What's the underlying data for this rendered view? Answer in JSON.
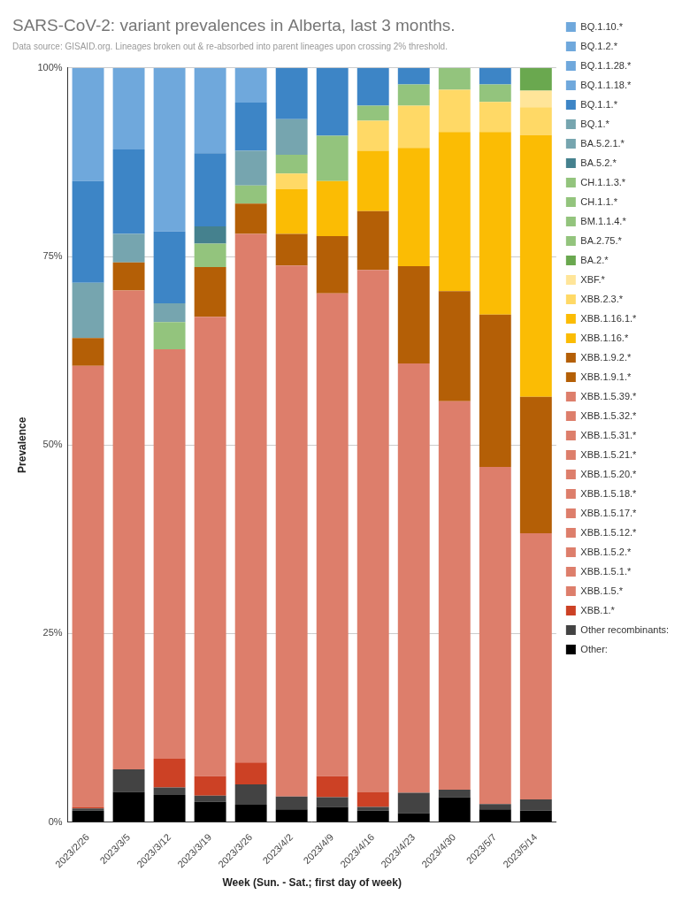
{
  "chart_data": {
    "type": "bar",
    "title": "SARS-CoV-2: variant prevalences in Alberta, last 3 months.",
    "subtitle": "Data source: GISAID.org. Lineages broken out & re-absorbed into parent lineages upon crossing 2% threshold.",
    "x_label": "Week (Sun. - Sat.; first day of week)",
    "y_label": "Prevalence",
    "categories": [
      "2023/2/26",
      "2023/3/5",
      "2023/3/12",
      "2023/3/19",
      "2023/3/26",
      "2023/4/2",
      "2023/4/9",
      "2023/4/16",
      "2023/4/23",
      "2023/4/30",
      "2023/5/7",
      "2023/5/14"
    ],
    "stacked": true,
    "grid": true,
    "legend": "right",
    "ylim": [
      0,
      100
    ],
    "yticks": [
      {
        "value": 0,
        "label": "0%"
      },
      {
        "value": 25,
        "label": "25%"
      },
      {
        "value": 50,
        "label": "50%"
      },
      {
        "value": 75,
        "label": "75%"
      },
      {
        "value": 100,
        "label": "100%"
      }
    ],
    "series": [
      {
        "name": "BQ.1.10.*",
        "color": "#6fa8dc",
        "values": [
          15,
          10.8,
          21.7,
          11.3,
          4.6,
          0,
          0,
          0,
          0,
          0,
          0,
          0
        ]
      },
      {
        "name": "BQ.1.2.*",
        "color": "#6fa8dc",
        "values": [
          0,
          0,
          0,
          0,
          0,
          0,
          0,
          0,
          0,
          0,
          0,
          0
        ]
      },
      {
        "name": "BQ.1.1.28.*",
        "color": "#6fa8dc",
        "values": [
          0,
          0,
          0,
          0,
          0,
          0,
          0,
          0,
          0,
          0,
          0,
          0
        ]
      },
      {
        "name": "BQ.1.1.18.*",
        "color": "#6fa8dc",
        "values": [
          0,
          0,
          0,
          0,
          0,
          0,
          0,
          0,
          0,
          0,
          0,
          0
        ]
      },
      {
        "name": "BQ.1.1.*",
        "color": "#3d85c6",
        "values": [
          13.5,
          11.2,
          9.5,
          9.7,
          6.4,
          6.8,
          9,
          5,
          2.2,
          0,
          2.2,
          0
        ]
      },
      {
        "name": "BQ.1.*",
        "color": "#76a5af",
        "values": [
          7.3,
          3.8,
          2.5,
          0,
          4.6,
          4.7,
          0,
          0,
          0,
          0,
          0,
          0
        ]
      },
      {
        "name": "BA.5.2.1.*",
        "color": "#76a5af",
        "values": [
          0,
          0,
          0,
          0,
          0,
          0,
          0,
          0,
          0,
          0,
          0,
          0
        ]
      },
      {
        "name": "BA.5.2.*",
        "color": "#45818e",
        "values": [
          0,
          0,
          0,
          2.3,
          0,
          0,
          0,
          0,
          0,
          0,
          0,
          0
        ]
      },
      {
        "name": "CH.1.1.3.*",
        "color": "#93c47d",
        "values": [
          0,
          0,
          0,
          0,
          0,
          0,
          0,
          0,
          0,
          0,
          0,
          0
        ]
      },
      {
        "name": "CH.1.1.*",
        "color": "#93c47d",
        "values": [
          0,
          0,
          3.6,
          3.1,
          2.4,
          2.5,
          6,
          2,
          2.8,
          2.9,
          2.3,
          0
        ]
      },
      {
        "name": "BM.1.1.4.*",
        "color": "#93c47d",
        "values": [
          0,
          0,
          0,
          0,
          0,
          0,
          0,
          0,
          0,
          0,
          0,
          0
        ]
      },
      {
        "name": "BA.2.75.*",
        "color": "#93c47d",
        "values": [
          0,
          0,
          0,
          0,
          0,
          0,
          0,
          0,
          0,
          0,
          0,
          0
        ]
      },
      {
        "name": "BA.2.*",
        "color": "#6aa84f",
        "values": [
          0,
          0,
          0,
          0,
          0,
          0,
          0,
          0,
          0,
          0,
          0,
          3
        ]
      },
      {
        "name": "XBF.*",
        "color": "#ffe599",
        "values": [
          0,
          0,
          0,
          0,
          0,
          0,
          0,
          0,
          0,
          0,
          0,
          2.2
        ]
      },
      {
        "name": "XBB.2.3.*",
        "color": "#ffd966",
        "values": [
          0,
          0,
          0,
          0,
          0,
          2.1,
          0,
          4,
          5.6,
          5.6,
          4,
          3.7
        ]
      },
      {
        "name": "XBB.1.16.1.*",
        "color": "#fbbc04",
        "values": [
          0,
          0,
          0,
          0,
          0,
          0,
          0,
          0,
          0,
          0,
          0,
          0
        ]
      },
      {
        "name": "XBB.1.16.*",
        "color": "#fbbc04",
        "values": [
          0,
          0,
          0,
          0,
          0,
          5.9,
          7.3,
          8,
          15.7,
          21.1,
          24.2,
          34.7
        ]
      },
      {
        "name": "XBB.1.9.2.*",
        "color": "#b45f06",
        "values": [
          0,
          0,
          0,
          0,
          0,
          0,
          0,
          0,
          0,
          0,
          0,
          0
        ]
      },
      {
        "name": "XBB.1.9.1.*",
        "color": "#b45f06",
        "values": [
          3.7,
          3.7,
          0,
          6.6,
          4,
          4.2,
          7.6,
          7.8,
          12.9,
          14.6,
          20.2,
          18.1
        ]
      },
      {
        "name": "XBB.1.5.39.*",
        "color": "#dd7e6b",
        "values": [
          0,
          0,
          0,
          0,
          0,
          0,
          0,
          0,
          0,
          0,
          0,
          0
        ]
      },
      {
        "name": "XBB.1.5.32.*",
        "color": "#dd7e6b",
        "values": [
          0,
          0,
          0,
          0,
          0,
          0,
          0,
          0,
          0,
          0,
          0,
          0
        ]
      },
      {
        "name": "XBB.1.5.31.*",
        "color": "#dd7e6b",
        "values": [
          0,
          0,
          0,
          0,
          0,
          0,
          0,
          0,
          0,
          0,
          0,
          0
        ]
      },
      {
        "name": "XBB.1.5.21.*",
        "color": "#dd7e6b",
        "values": [
          0,
          0,
          0,
          0,
          0,
          0,
          0,
          0,
          0,
          0,
          0,
          0
        ]
      },
      {
        "name": "XBB.1.5.20.*",
        "color": "#dd7e6b",
        "values": [
          0,
          0,
          0,
          0,
          0,
          0,
          0,
          0,
          0,
          0,
          0,
          0
        ]
      },
      {
        "name": "XBB.1.5.18.*",
        "color": "#dd7e6b",
        "values": [
          0,
          0,
          0,
          0,
          0,
          0,
          0,
          0,
          0,
          0,
          0,
          0
        ]
      },
      {
        "name": "XBB.1.5.17.*",
        "color": "#dd7e6b",
        "values": [
          0,
          0,
          0,
          0,
          0,
          0,
          0,
          0,
          0,
          0,
          0,
          0
        ]
      },
      {
        "name": "XBB.1.5.12.*",
        "color": "#dd7e6b",
        "values": [
          0,
          0,
          0,
          0,
          0,
          0,
          0,
          0,
          0,
          0,
          0,
          0
        ]
      },
      {
        "name": "XBB.1.5.2.*",
        "color": "#dd7e6b",
        "values": [
          0,
          0,
          0,
          0,
          0,
          0,
          0,
          0,
          0,
          0,
          0,
          0
        ]
      },
      {
        "name": "XBB.1.5.1.*",
        "color": "#dd7e6b",
        "values": [
          0,
          0,
          0,
          0,
          0,
          0,
          0,
          0,
          0,
          0,
          0,
          0
        ]
      },
      {
        "name": "XBB.1.5.*",
        "color": "#dd7e6b",
        "values": [
          58.5,
          63.5,
          54.3,
          60.9,
          70.1,
          70.4,
          64,
          69.2,
          56.9,
          51.5,
          44.7,
          35.3
        ]
      },
      {
        "name": "XBB.1.*",
        "color": "#cc4125",
        "values": [
          0.2,
          0,
          3.8,
          2.6,
          2.9,
          0,
          2.8,
          2,
          0,
          0,
          0,
          0
        ]
      },
      {
        "name": "Other recombinants:",
        "color": "#434343",
        "values": [
          0.3,
          3,
          1,
          0.8,
          2.7,
          1.7,
          1.3,
          0.5,
          2.7,
          1,
          0.7,
          1.5
        ]
      },
      {
        "name": "Other:",
        "color": "#000000",
        "values": [
          1.5,
          4,
          3.6,
          2.7,
          2.3,
          1.7,
          2,
          1.5,
          1.2,
          3.3,
          1.7,
          1.5
        ]
      }
    ]
  }
}
